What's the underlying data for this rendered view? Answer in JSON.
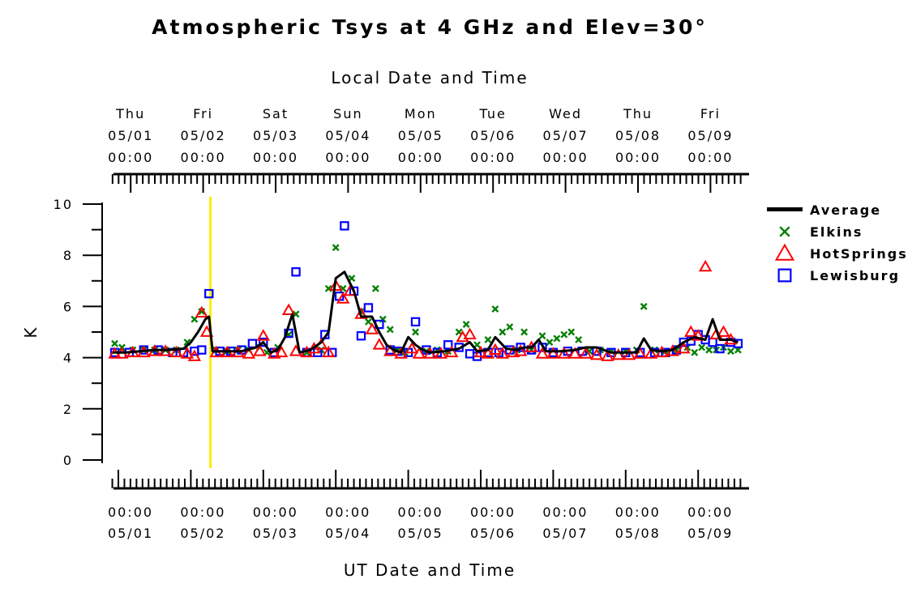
{
  "chart_data": {
    "type": "scatter",
    "title": "Atmospheric Tsys at 4 GHz and Elev=30°",
    "top_axis_label": "Local Date and Time",
    "xlabel": "UT Date and Time",
    "ylabel": "K",
    "ylim": [
      0,
      10
    ],
    "yticks": [
      0,
      2,
      4,
      6,
      8,
      10
    ],
    "x_unit": "days since 05/01 00:00 UT",
    "xlim": [
      -0.13,
      8.6
    ],
    "bottom_ticks": [
      {
        "x": 0,
        "line1": "00:00",
        "line2": "05/01"
      },
      {
        "x": 1,
        "line1": "00:00",
        "line2": "05/02"
      },
      {
        "x": 2,
        "line1": "00:00",
        "line2": "05/03"
      },
      {
        "x": 3,
        "line1": "00:00",
        "line2": "05/04"
      },
      {
        "x": 4,
        "line1": "00:00",
        "line2": "05/05"
      },
      {
        "x": 5,
        "line1": "00:00",
        "line2": "05/06"
      },
      {
        "x": 6,
        "line1": "00:00",
        "line2": "05/07"
      },
      {
        "x": 7,
        "line1": "00:00",
        "line2": "05/08"
      },
      {
        "x": 8,
        "line1": "00:00",
        "line2": "05/09"
      }
    ],
    "top_ticks": [
      {
        "x": 0.17,
        "day": "Thu",
        "date": "05/01",
        "time": "00:00"
      },
      {
        "x": 1.17,
        "day": "Fri",
        "date": "05/02",
        "time": "00:00"
      },
      {
        "x": 2.17,
        "day": "Sat",
        "date": "05/03",
        "time": "00:00"
      },
      {
        "x": 3.17,
        "day": "Sun",
        "date": "05/04",
        "time": "00:00"
      },
      {
        "x": 4.17,
        "day": "Mon",
        "date": "05/05",
        "time": "00:00"
      },
      {
        "x": 5.17,
        "day": "Tue",
        "date": "05/06",
        "time": "00:00"
      },
      {
        "x": 6.17,
        "day": "Wed",
        "date": "05/07",
        "time": "00:00"
      },
      {
        "x": 7.17,
        "day": "Thu",
        "date": "05/08",
        "time": "00:00"
      },
      {
        "x": 8.17,
        "day": "Fri",
        "date": "05/09",
        "time": "00:00"
      }
    ],
    "current_time_marker": {
      "x": 1.27,
      "color": "#ffee00"
    },
    "legend": {
      "placement": "right",
      "entries": [
        {
          "name": "Average",
          "marker": "line",
          "color": "#000000"
        },
        {
          "name": "Elkins",
          "marker": "x",
          "color": "#008000"
        },
        {
          "name": "HotSprings",
          "marker": "triangle",
          "color": "#ff0000"
        },
        {
          "name": "Lewisburg",
          "marker": "square",
          "color": "#0000ff"
        }
      ]
    },
    "series": [
      {
        "name": "Average",
        "color": "#000000",
        "points": [
          [
            -0.08,
            4.2
          ],
          [
            0.1,
            4.2
          ],
          [
            0.3,
            4.25
          ],
          [
            0.5,
            4.3
          ],
          [
            0.7,
            4.3
          ],
          [
            0.9,
            4.35
          ],
          [
            1.0,
            4.6
          ],
          [
            1.1,
            5.0
          ],
          [
            1.2,
            5.5
          ],
          [
            1.25,
            5.6
          ],
          [
            1.3,
            4.25
          ],
          [
            1.5,
            4.25
          ],
          [
            1.7,
            4.25
          ],
          [
            1.9,
            4.4
          ],
          [
            2.0,
            4.6
          ],
          [
            2.1,
            4.2
          ],
          [
            2.2,
            4.3
          ],
          [
            2.3,
            4.8
          ],
          [
            2.4,
            5.7
          ],
          [
            2.5,
            4.2
          ],
          [
            2.65,
            4.3
          ],
          [
            2.8,
            4.6
          ],
          [
            2.9,
            5.0
          ],
          [
            3.0,
            7.1
          ],
          [
            3.12,
            7.35
          ],
          [
            3.25,
            6.6
          ],
          [
            3.35,
            5.6
          ],
          [
            3.5,
            5.6
          ],
          [
            3.6,
            5.0
          ],
          [
            3.7,
            4.5
          ],
          [
            3.8,
            4.3
          ],
          [
            3.9,
            4.2
          ],
          [
            4.0,
            4.8
          ],
          [
            4.1,
            4.5
          ],
          [
            4.2,
            4.3
          ],
          [
            4.3,
            4.2
          ],
          [
            4.5,
            4.25
          ],
          [
            4.7,
            4.35
          ],
          [
            4.85,
            4.6
          ],
          [
            4.95,
            4.25
          ],
          [
            5.1,
            4.3
          ],
          [
            5.2,
            4.8
          ],
          [
            5.35,
            4.35
          ],
          [
            5.5,
            4.3
          ],
          [
            5.6,
            4.4
          ],
          [
            5.7,
            4.4
          ],
          [
            5.8,
            4.7
          ],
          [
            5.9,
            4.25
          ],
          [
            6.1,
            4.25
          ],
          [
            6.3,
            4.3
          ],
          [
            6.45,
            4.4
          ],
          [
            6.6,
            4.4
          ],
          [
            6.8,
            4.2
          ],
          [
            7.0,
            4.2
          ],
          [
            7.15,
            4.2
          ],
          [
            7.25,
            4.75
          ],
          [
            7.35,
            4.3
          ],
          [
            7.5,
            4.25
          ],
          [
            7.65,
            4.3
          ],
          [
            7.8,
            4.6
          ],
          [
            7.95,
            4.8
          ],
          [
            8.1,
            4.7
          ],
          [
            8.2,
            5.5
          ],
          [
            8.3,
            4.7
          ],
          [
            8.45,
            4.7
          ],
          [
            8.55,
            4.6
          ]
        ]
      },
      {
        "name": "Elkins",
        "color": "#008000",
        "points": [
          [
            -0.05,
            4.55
          ],
          [
            0.05,
            4.4
          ],
          [
            0.2,
            4.3
          ],
          [
            0.35,
            4.3
          ],
          [
            0.5,
            4.3
          ],
          [
            0.65,
            4.3
          ],
          [
            0.8,
            4.3
          ],
          [
            0.95,
            4.6
          ],
          [
            1.05,
            5.5
          ],
          [
            1.15,
            5.8
          ],
          [
            1.35,
            4.3
          ],
          [
            1.5,
            4.25
          ],
          [
            1.65,
            4.3
          ],
          [
            1.8,
            4.3
          ],
          [
            1.95,
            4.4
          ],
          [
            2.05,
            4.2
          ],
          [
            2.2,
            4.4
          ],
          [
            2.35,
            4.9
          ],
          [
            2.45,
            5.7
          ],
          [
            2.6,
            4.2
          ],
          [
            2.8,
            4.3
          ],
          [
            2.9,
            6.7
          ],
          [
            3.0,
            8.3
          ],
          [
            3.1,
            6.7
          ],
          [
            3.22,
            7.1
          ],
          [
            3.35,
            5.8
          ],
          [
            3.45,
            5.4
          ],
          [
            3.55,
            6.7
          ],
          [
            3.65,
            5.5
          ],
          [
            3.75,
            5.1
          ],
          [
            3.85,
            4.3
          ],
          [
            3.95,
            4.2
          ],
          [
            4.1,
            5.0
          ],
          [
            4.25,
            4.25
          ],
          [
            4.4,
            4.3
          ],
          [
            4.55,
            4.25
          ],
          [
            4.7,
            5.0
          ],
          [
            4.8,
            5.3
          ],
          [
            4.95,
            4.5
          ],
          [
            5.1,
            4.7
          ],
          [
            5.2,
            5.9
          ],
          [
            5.3,
            5.0
          ],
          [
            5.4,
            5.2
          ],
          [
            5.5,
            4.3
          ],
          [
            5.6,
            5.0
          ],
          [
            5.7,
            4.3
          ],
          [
            5.85,
            4.85
          ],
          [
            5.95,
            4.6
          ],
          [
            6.05,
            4.75
          ],
          [
            6.15,
            4.9
          ],
          [
            6.25,
            5.0
          ],
          [
            6.35,
            4.7
          ],
          [
            6.5,
            4.25
          ],
          [
            6.65,
            4.3
          ],
          [
            6.8,
            4.25
          ],
          [
            7.0,
            4.25
          ],
          [
            7.15,
            4.3
          ],
          [
            7.25,
            6.0
          ],
          [
            7.4,
            4.3
          ],
          [
            7.55,
            4.25
          ],
          [
            7.7,
            4.3
          ],
          [
            7.85,
            4.4
          ],
          [
            7.95,
            4.2
          ],
          [
            8.05,
            4.4
          ],
          [
            8.15,
            4.3
          ],
          [
            8.25,
            4.3
          ],
          [
            8.35,
            4.4
          ],
          [
            8.45,
            4.25
          ],
          [
            8.55,
            4.3
          ]
        ]
      },
      {
        "name": "HotSprings",
        "color": "#ff0000",
        "points": [
          [
            -0.05,
            4.15
          ],
          [
            0.05,
            4.15
          ],
          [
            0.2,
            4.2
          ],
          [
            0.35,
            4.2
          ],
          [
            0.5,
            4.25
          ],
          [
            0.65,
            4.25
          ],
          [
            0.8,
            4.2
          ],
          [
            0.95,
            4.15
          ],
          [
            1.05,
            4.05
          ],
          [
            1.15,
            5.75
          ],
          [
            1.22,
            5.0
          ],
          [
            1.35,
            4.2
          ],
          [
            1.5,
            4.2
          ],
          [
            1.65,
            4.2
          ],
          [
            1.8,
            4.15
          ],
          [
            1.95,
            4.25
          ],
          [
            2.0,
            4.85
          ],
          [
            2.15,
            4.15
          ],
          [
            2.25,
            4.2
          ],
          [
            2.35,
            5.85
          ],
          [
            2.45,
            4.25
          ],
          [
            2.6,
            4.2
          ],
          [
            2.7,
            4.35
          ],
          [
            2.8,
            4.5
          ],
          [
            2.9,
            4.2
          ],
          [
            3.0,
            6.8
          ],
          [
            3.1,
            6.3
          ],
          [
            3.2,
            6.6
          ],
          [
            3.35,
            5.7
          ],
          [
            3.5,
            5.1
          ],
          [
            3.6,
            4.5
          ],
          [
            3.75,
            4.25
          ],
          [
            3.9,
            4.15
          ],
          [
            4.05,
            4.35
          ],
          [
            4.15,
            4.15
          ],
          [
            4.3,
            4.15
          ],
          [
            4.45,
            4.15
          ],
          [
            4.6,
            4.2
          ],
          [
            4.75,
            4.8
          ],
          [
            4.85,
            4.9
          ],
          [
            5.0,
            4.2
          ],
          [
            5.1,
            4.15
          ],
          [
            5.2,
            4.3
          ],
          [
            5.3,
            4.15
          ],
          [
            5.45,
            4.2
          ],
          [
            5.55,
            4.25
          ],
          [
            5.7,
            4.4
          ],
          [
            5.85,
            4.15
          ],
          [
            6.0,
            4.15
          ],
          [
            6.15,
            4.15
          ],
          [
            6.3,
            4.15
          ],
          [
            6.45,
            4.15
          ],
          [
            6.6,
            4.1
          ],
          [
            6.75,
            4.05
          ],
          [
            6.9,
            4.1
          ],
          [
            7.05,
            4.1
          ],
          [
            7.2,
            4.15
          ],
          [
            7.35,
            4.15
          ],
          [
            7.5,
            4.2
          ],
          [
            7.65,
            4.25
          ],
          [
            7.8,
            4.35
          ],
          [
            7.9,
            5.0
          ],
          [
            8.0,
            4.85
          ],
          [
            8.1,
            7.55
          ],
          [
            8.25,
            4.9
          ],
          [
            8.35,
            5.0
          ],
          [
            8.45,
            4.7
          ]
        ]
      },
      {
        "name": "Lewisburg",
        "color": "#0000ff",
        "points": [
          [
            -0.05,
            4.2
          ],
          [
            0.15,
            4.2
          ],
          [
            0.35,
            4.3
          ],
          [
            0.55,
            4.3
          ],
          [
            0.75,
            4.2
          ],
          [
            0.9,
            4.2
          ],
          [
            1.05,
            4.25
          ],
          [
            1.15,
            4.3
          ],
          [
            1.25,
            6.5
          ],
          [
            1.4,
            4.25
          ],
          [
            1.55,
            4.25
          ],
          [
            1.7,
            4.3
          ],
          [
            1.85,
            4.55
          ],
          [
            2.0,
            4.6
          ],
          [
            2.15,
            4.2
          ],
          [
            2.35,
            4.95
          ],
          [
            2.45,
            7.35
          ],
          [
            2.6,
            4.2
          ],
          [
            2.75,
            4.2
          ],
          [
            2.85,
            4.9
          ],
          [
            2.95,
            4.2
          ],
          [
            3.05,
            6.4
          ],
          [
            3.12,
            9.15
          ],
          [
            3.25,
            6.6
          ],
          [
            3.35,
            4.85
          ],
          [
            3.45,
            5.95
          ],
          [
            3.6,
            5.3
          ],
          [
            3.75,
            4.3
          ],
          [
            3.85,
            4.25
          ],
          [
            4.0,
            4.2
          ],
          [
            4.1,
            5.4
          ],
          [
            4.25,
            4.3
          ],
          [
            4.4,
            4.2
          ],
          [
            4.55,
            4.5
          ],
          [
            4.7,
            4.4
          ],
          [
            4.85,
            4.15
          ],
          [
            4.95,
            4.05
          ],
          [
            5.1,
            4.2
          ],
          [
            5.25,
            4.2
          ],
          [
            5.4,
            4.3
          ],
          [
            5.55,
            4.4
          ],
          [
            5.7,
            4.3
          ],
          [
            5.85,
            4.4
          ],
          [
            6.0,
            4.2
          ],
          [
            6.2,
            4.25
          ],
          [
            6.4,
            4.25
          ],
          [
            6.6,
            4.25
          ],
          [
            6.8,
            4.2
          ],
          [
            7.0,
            4.2
          ],
          [
            7.2,
            4.2
          ],
          [
            7.4,
            4.2
          ],
          [
            7.55,
            4.2
          ],
          [
            7.7,
            4.3
          ],
          [
            7.8,
            4.6
          ],
          [
            7.9,
            4.65
          ],
          [
            8.0,
            4.9
          ],
          [
            8.1,
            4.7
          ],
          [
            8.2,
            4.6
          ],
          [
            8.3,
            4.35
          ],
          [
            8.45,
            4.6
          ],
          [
            8.55,
            4.55
          ]
        ]
      }
    ]
  }
}
